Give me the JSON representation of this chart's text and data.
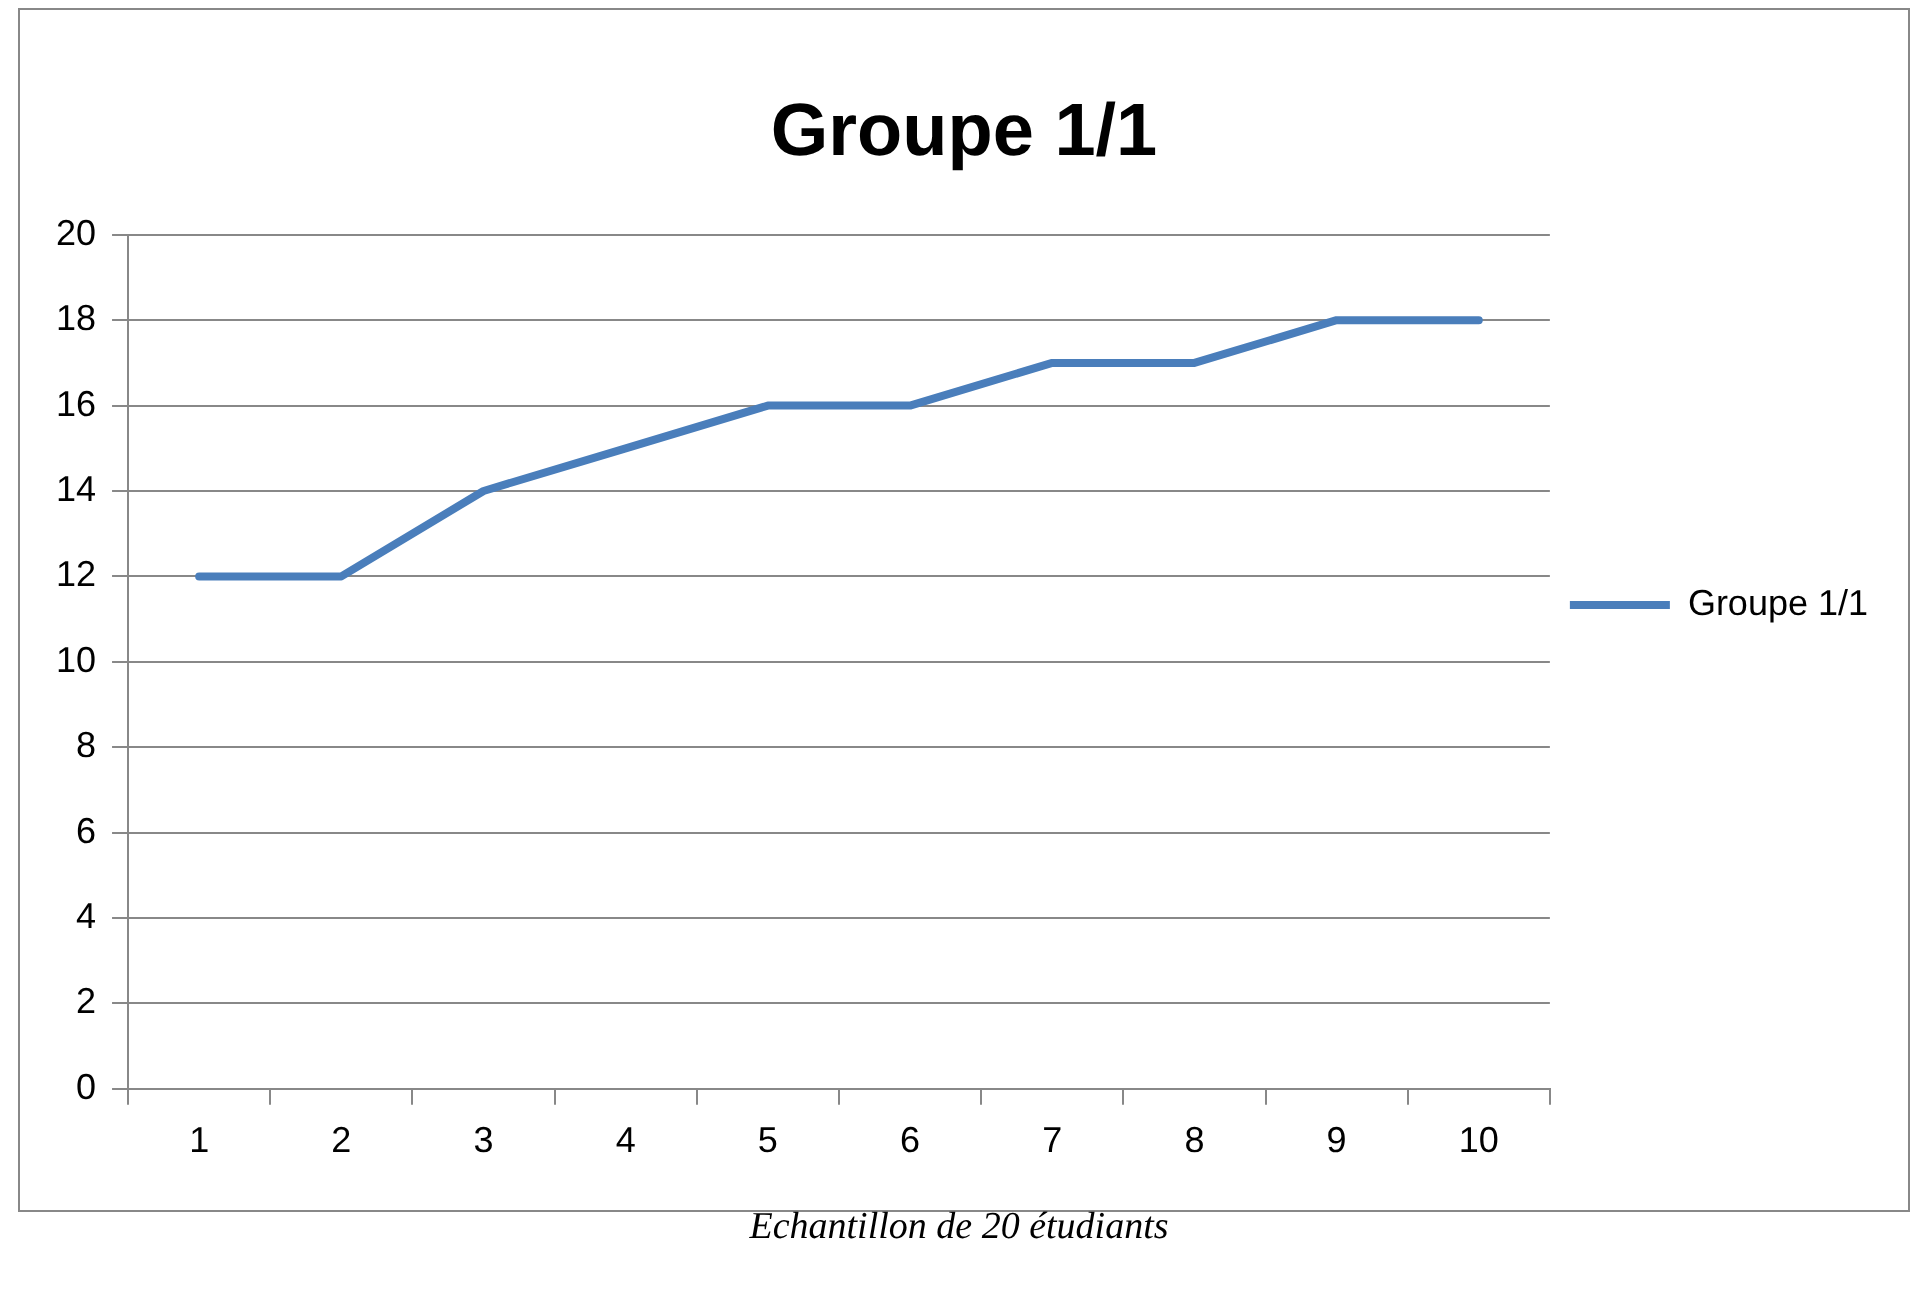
{
  "chart_data": {
    "type": "line",
    "title": "Groupe 1/1",
    "categories": [
      "1",
      "2",
      "3",
      "4",
      "5",
      "6",
      "7",
      "8",
      "9",
      "10"
    ],
    "series": [
      {
        "name": "Groupe 1/1",
        "color": "#4a7ebb",
        "values": [
          12,
          12,
          14,
          15,
          16,
          16,
          17,
          17,
          18,
          18
        ]
      }
    ],
    "ylim": [
      0,
      20
    ],
    "yticks": [
      0,
      2,
      4,
      6,
      8,
      10,
      12,
      14,
      16,
      18,
      20
    ],
    "grid": "y",
    "legend": "right",
    "marker": "none",
    "line_style": "solid",
    "annotations": [
      "Echantillon de 20 étudiants"
    ]
  }
}
